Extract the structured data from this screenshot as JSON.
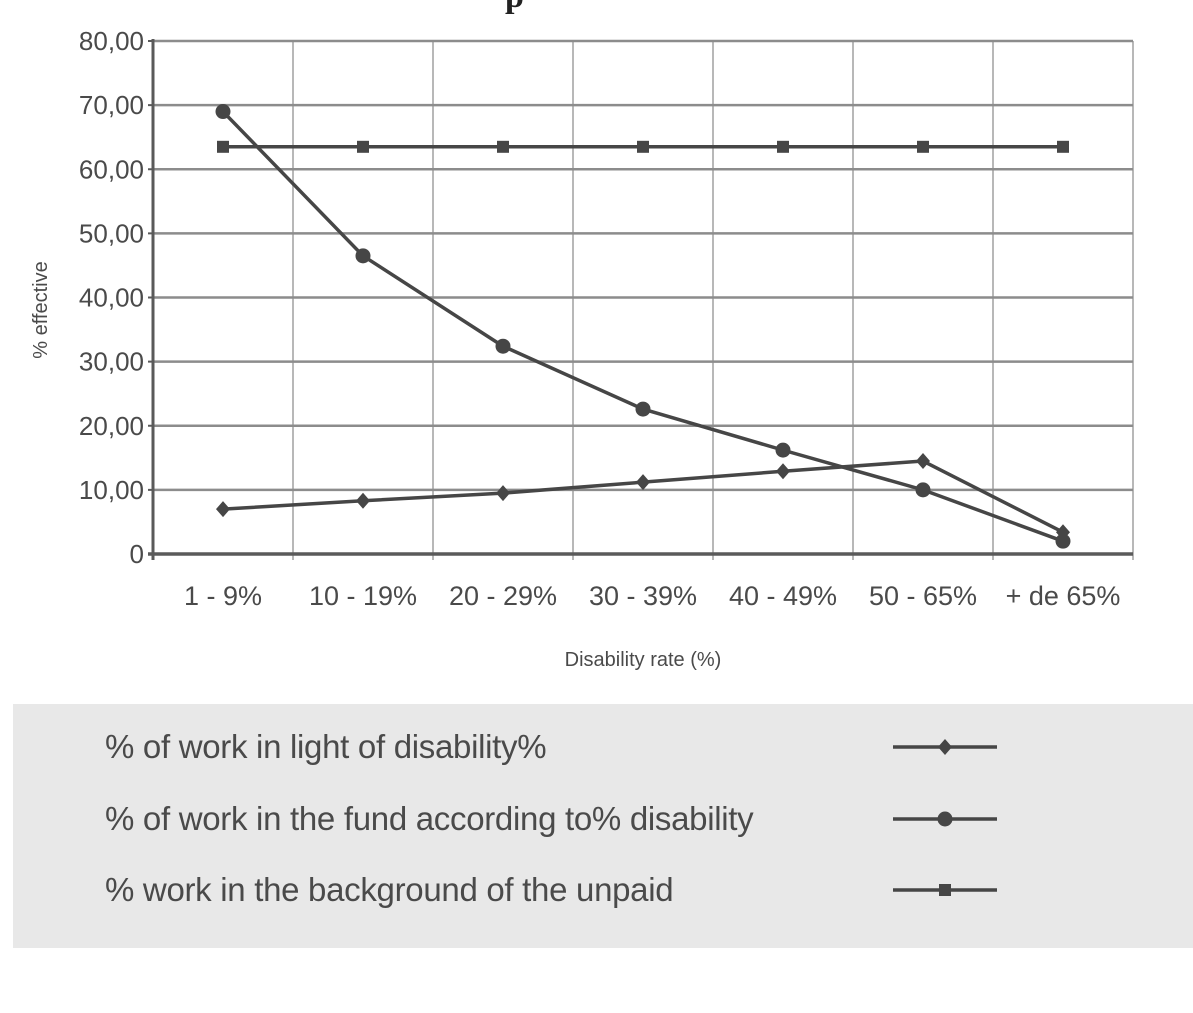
{
  "title_fragment": "p",
  "chart_data": {
    "type": "line",
    "title": "",
    "xlabel": "Disability rate (%)",
    "ylabel": "% effective",
    "ylim": [
      0,
      80
    ],
    "y_ticks": [
      "0",
      "10,00",
      "20,00",
      "30,00",
      "40,00",
      "50,00",
      "60,00",
      "70,00",
      "80,00"
    ],
    "y_tick_values": [
      0,
      10,
      20,
      30,
      40,
      50,
      60,
      70,
      80
    ],
    "grid": true,
    "legend_position": "bottom",
    "categories": [
      "1 - 9%",
      "10 - 19%",
      "20 - 29%",
      "30 - 39%",
      "40 - 49%",
      "50 - 65%",
      "+ de 65%"
    ],
    "series": [
      {
        "name": "% of work in light of disability%",
        "marker": "diamond",
        "color": "#464646",
        "values": [
          7.0,
          8.3,
          9.5,
          11.2,
          12.9,
          14.5,
          3.4
        ]
      },
      {
        "name": "% of work in the fund according to% disability",
        "marker": "circle",
        "color": "#464646",
        "values": [
          69.0,
          46.5,
          32.4,
          22.6,
          16.2,
          10.0,
          2.0
        ]
      },
      {
        "name": "% work in the background of the unpaid",
        "marker": "square",
        "color": "#464646",
        "values": [
          63.5,
          63.5,
          63.5,
          63.5,
          63.5,
          63.5,
          63.5
        ]
      }
    ]
  },
  "legend": {
    "items": [
      {
        "label": "% of work in light of disability%",
        "marker": "diamond"
      },
      {
        "label": "% of work in the fund according to% disability",
        "marker": "circle"
      },
      {
        "label": "% work in the background of the unpaid",
        "marker": "square"
      }
    ]
  },
  "colors": {
    "series": "#464646",
    "axis": "#5a5a5a",
    "grid_horizontal": "#8c8c8c",
    "grid_vertical": "#b8b8b8",
    "legend_bg": "#e8e8e8"
  }
}
